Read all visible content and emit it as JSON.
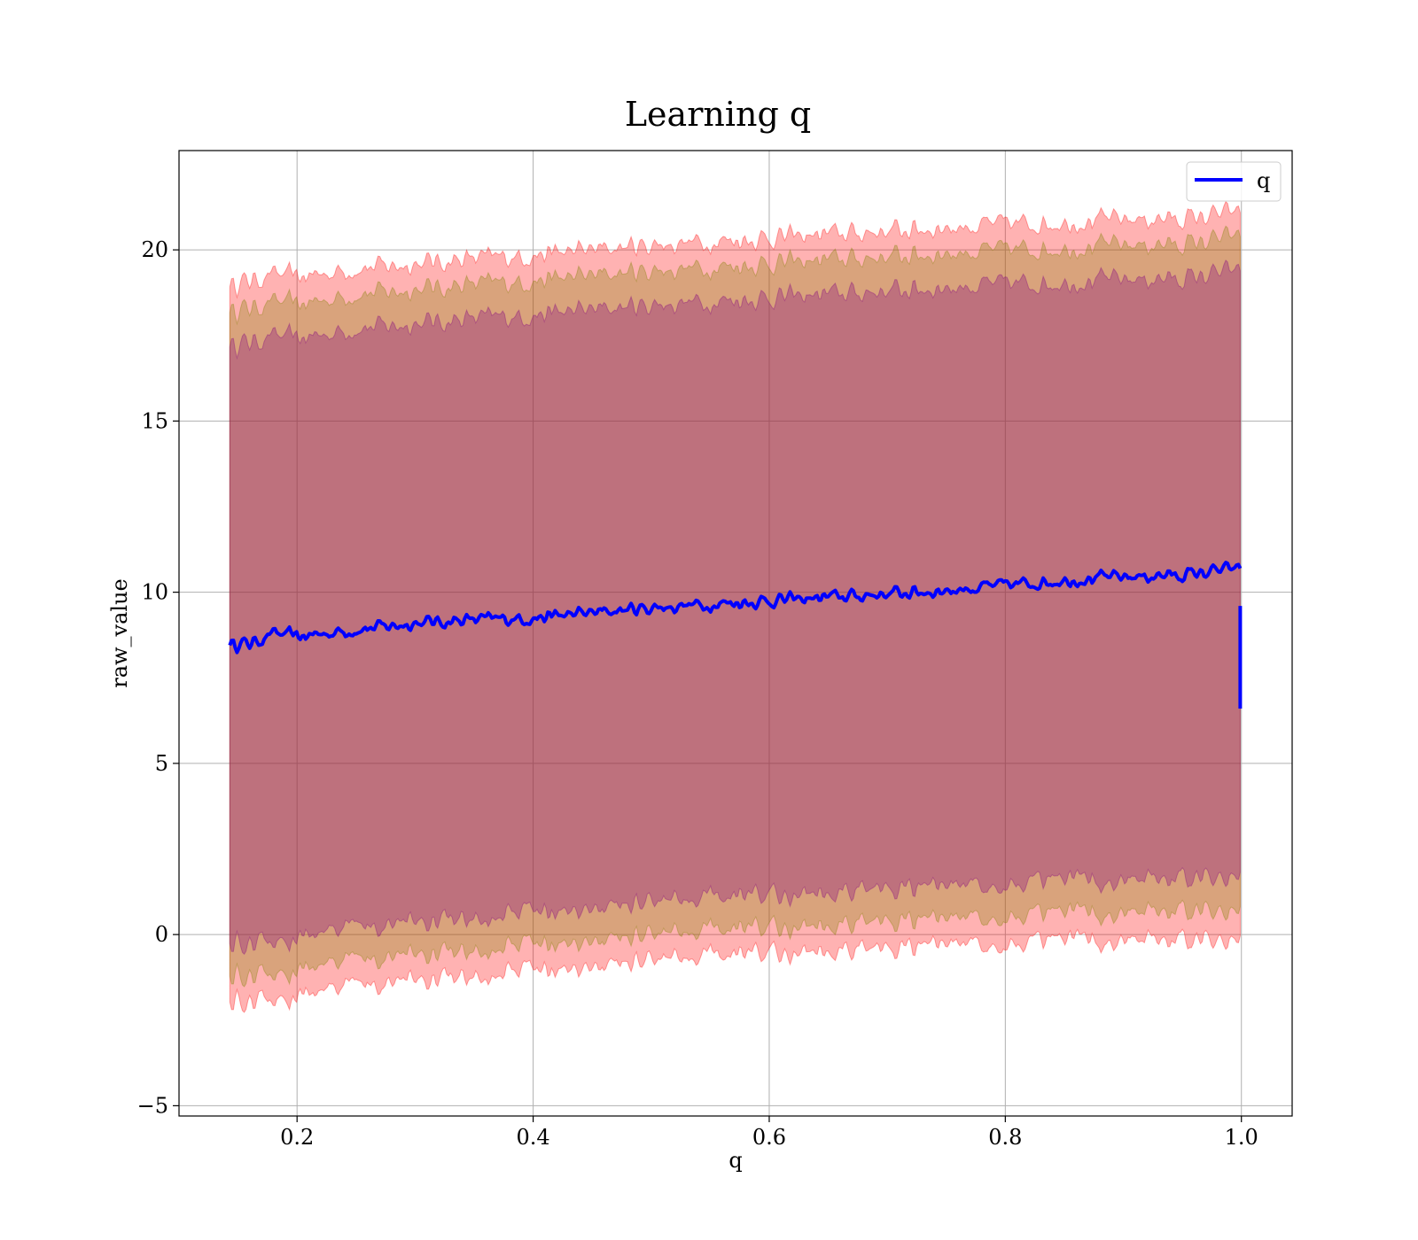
{
  "chart_data": {
    "type": "area",
    "title": "Learning q",
    "xlabel": "q",
    "ylabel": "raw_value",
    "xlim": [
      0.1,
      1.043
    ],
    "ylim": [
      -5.3,
      22.9
    ],
    "xticks": [
      0.2,
      0.4,
      0.6,
      0.8,
      1.0
    ],
    "xtick_labels": [
      "0.2",
      "0.4",
      "0.6",
      "0.8",
      "1.0"
    ],
    "yticks": [
      -5,
      0,
      5,
      10,
      15,
      20
    ],
    "ytick_labels": [
      "−5",
      "0",
      "5",
      "10",
      "15",
      "20"
    ],
    "grid": true,
    "legend": {
      "placement": "top-right",
      "entries": [
        "q"
      ]
    },
    "line_color": "#0000ff",
    "x": [
      0.143,
      0.16,
      0.18,
      0.2,
      0.25,
      0.3,
      0.35,
      0.4,
      0.45,
      0.5,
      0.55,
      0.6,
      0.65,
      0.7,
      0.75,
      0.8,
      0.85,
      0.9,
      0.95,
      0.999
    ],
    "series": [
      {
        "name": "q",
        "values": [
          8.5,
          8.5,
          8.8,
          8.7,
          8.9,
          9.1,
          9.2,
          9.25,
          9.4,
          9.55,
          9.65,
          9.75,
          9.85,
          9.95,
          10.05,
          10.2,
          10.35,
          10.45,
          10.5,
          10.7
        ]
      }
    ],
    "bands": [
      {
        "color": "#ff0000",
        "opacity": 0.3,
        "lower": [
          -2.05,
          -2.0,
          -1.85,
          -1.75,
          -1.5,
          -1.35,
          -1.2,
          -1.05,
          -0.9,
          -0.75,
          -0.65,
          -0.55,
          -0.45,
          -0.4,
          -0.3,
          -0.25,
          -0.2,
          -0.15,
          -0.15,
          -0.05
        ],
        "upper": [
          19.0,
          19.1,
          19.3,
          19.2,
          19.45,
          19.6,
          19.75,
          19.85,
          20.0,
          20.15,
          20.25,
          20.35,
          20.45,
          20.55,
          20.65,
          20.75,
          20.8,
          20.9,
          20.9,
          21.1
        ]
      },
      {
        "color": "#808000",
        "opacity": 0.3,
        "lower": [
          -1.3,
          -1.25,
          -1.1,
          -1.0,
          -0.75,
          -0.6,
          -0.45,
          -0.3,
          -0.15,
          0.0,
          0.1,
          0.2,
          0.3,
          0.4,
          0.45,
          0.55,
          0.6,
          0.65,
          0.7,
          0.8
        ],
        "upper": [
          18.25,
          18.3,
          18.5,
          18.4,
          18.7,
          18.85,
          19.0,
          19.1,
          19.25,
          19.4,
          19.5,
          19.6,
          19.7,
          19.8,
          19.9,
          20.0,
          20.05,
          20.15,
          20.15,
          20.4
        ]
      },
      {
        "color": "#800080",
        "opacity": 0.3,
        "lower": [
          -0.35,
          -0.3,
          -0.15,
          -0.05,
          0.2,
          0.35,
          0.5,
          0.65,
          0.8,
          0.95,
          1.05,
          1.15,
          1.25,
          1.35,
          1.4,
          1.5,
          1.55,
          1.6,
          1.65,
          1.8
        ],
        "upper": [
          17.25,
          17.3,
          17.5,
          17.4,
          17.7,
          17.85,
          18.0,
          18.1,
          18.25,
          18.4,
          18.5,
          18.6,
          18.7,
          18.8,
          18.9,
          19.0,
          19.05,
          19.15,
          19.15,
          19.4
        ]
      }
    ],
    "end_drop": [
      6.6,
      9.6
    ]
  }
}
